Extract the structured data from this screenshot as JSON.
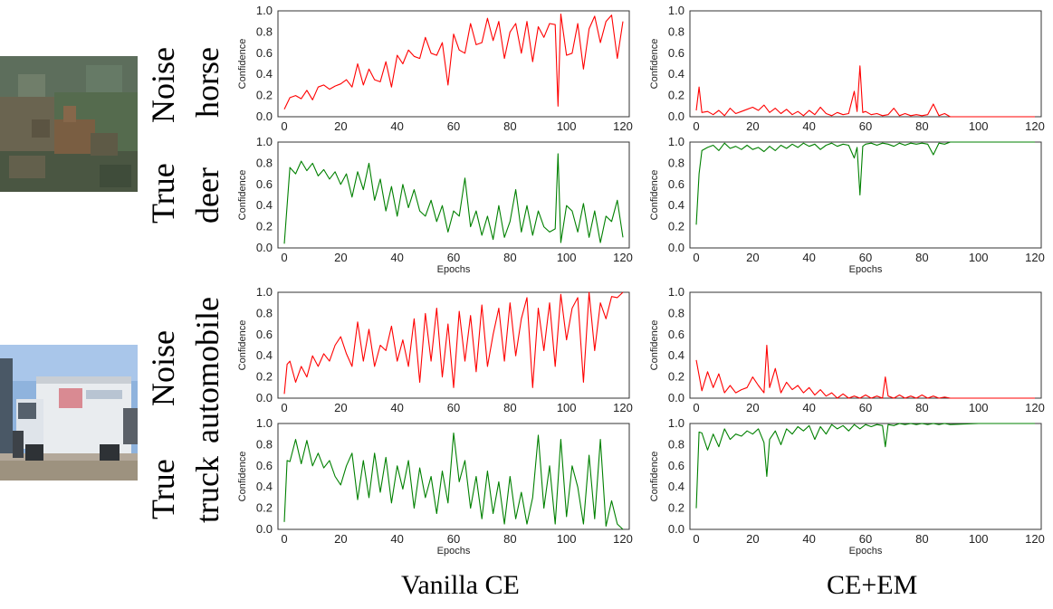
{
  "figure": {
    "row_labels": {
      "sample1": {
        "noise_word": "Noise",
        "noise_class": "horse",
        "true_word": "True",
        "true_class": "deer"
      },
      "sample2": {
        "noise_word": "Noise",
        "noise_class": "automobile",
        "true_word": "True",
        "true_class": "truck"
      }
    },
    "column_titles": {
      "left": "Vanilla CE",
      "right": "CE+EM"
    },
    "colors": {
      "noise": "#ff0000",
      "true": "#008000",
      "axis": "#333333"
    },
    "images": {
      "sample1": "deer-image",
      "sample2": "truck-image"
    }
  },
  "chart_data": [
    {
      "id": "c1",
      "type": "line",
      "method": "Vanilla CE",
      "series_name": "horse",
      "label_kind": "noise",
      "xlabel": "",
      "ylabel": "Confidence",
      "xlim": [
        0,
        120
      ],
      "ylim": [
        0,
        1
      ],
      "xticks": [
        0,
        20,
        40,
        60,
        80,
        100,
        120
      ],
      "yticks": [
        0.0,
        0.2,
        0.4,
        0.6,
        0.8,
        1.0
      ],
      "x": [
        0,
        2,
        4,
        6,
        8,
        10,
        12,
        14,
        16,
        18,
        20,
        22,
        24,
        26,
        28,
        30,
        32,
        34,
        36,
        38,
        40,
        42,
        44,
        46,
        48,
        50,
        52,
        54,
        56,
        58,
        60,
        62,
        64,
        66,
        68,
        70,
        72,
        74,
        76,
        78,
        80,
        82,
        84,
        86,
        88,
        90,
        92,
        94,
        96,
        97,
        98,
        100,
        102,
        104,
        106,
        108,
        110,
        112,
        114,
        116,
        118,
        120
      ],
      "values": [
        0.07,
        0.18,
        0.2,
        0.17,
        0.25,
        0.16,
        0.28,
        0.3,
        0.26,
        0.29,
        0.31,
        0.35,
        0.28,
        0.5,
        0.3,
        0.45,
        0.35,
        0.33,
        0.52,
        0.28,
        0.58,
        0.5,
        0.63,
        0.57,
        0.55,
        0.75,
        0.6,
        0.58,
        0.7,
        0.3,
        0.78,
        0.63,
        0.6,
        0.88,
        0.68,
        0.7,
        0.93,
        0.72,
        0.9,
        0.55,
        0.8,
        0.88,
        0.6,
        0.9,
        0.52,
        0.85,
        0.75,
        0.88,
        0.87,
        0.1,
        0.97,
        0.58,
        0.6,
        0.88,
        0.45,
        0.83,
        0.95,
        0.7,
        0.9,
        0.96,
        0.55,
        0.9
      ]
    },
    {
      "id": "c2",
      "type": "line",
      "method": "CE+EM",
      "series_name": "horse",
      "label_kind": "noise",
      "xlabel": "",
      "ylabel": "Confidence",
      "xlim": [
        0,
        120
      ],
      "ylim": [
        0,
        1
      ],
      "xticks": [
        0,
        20,
        40,
        60,
        80,
        100,
        120
      ],
      "yticks": [
        0.0,
        0.2,
        0.4,
        0.6,
        0.8,
        1.0
      ],
      "x": [
        0,
        1,
        2,
        4,
        6,
        8,
        10,
        12,
        14,
        16,
        18,
        20,
        22,
        24,
        26,
        28,
        30,
        32,
        34,
        36,
        38,
        40,
        42,
        44,
        46,
        48,
        50,
        52,
        54,
        56,
        57,
        58,
        59,
        60,
        62,
        64,
        66,
        68,
        70,
        72,
        74,
        76,
        78,
        80,
        82,
        84,
        86,
        88,
        90,
        100,
        110,
        120
      ],
      "values": [
        0.06,
        0.28,
        0.04,
        0.05,
        0.02,
        0.06,
        0.01,
        0.08,
        0.03,
        0.05,
        0.07,
        0.09,
        0.06,
        0.11,
        0.04,
        0.08,
        0.03,
        0.07,
        0.02,
        0.05,
        0.01,
        0.06,
        0.02,
        0.09,
        0.03,
        0.01,
        0.04,
        0.02,
        0.03,
        0.24,
        0.05,
        0.48,
        0.04,
        0.05,
        0.02,
        0.03,
        0.01,
        0.02,
        0.08,
        0.01,
        0.03,
        0.01,
        0.02,
        0.01,
        0.02,
        0.12,
        0.01,
        0.03,
        0.0,
        0.0,
        0.0,
        0.0
      ]
    },
    {
      "id": "c3",
      "type": "line",
      "method": "Vanilla CE",
      "series_name": "deer",
      "label_kind": "true",
      "xlabel": "Epochs",
      "ylabel": "Confidence",
      "xlim": [
        0,
        120
      ],
      "ylim": [
        0,
        1
      ],
      "xticks": [
        0,
        20,
        40,
        60,
        80,
        100,
        120
      ],
      "yticks": [
        0.0,
        0.2,
        0.4,
        0.6,
        0.8,
        1.0
      ],
      "x": [
        0,
        2,
        4,
        6,
        8,
        10,
        12,
        14,
        16,
        18,
        20,
        22,
        24,
        26,
        28,
        30,
        32,
        34,
        36,
        38,
        40,
        42,
        44,
        46,
        48,
        50,
        52,
        54,
        56,
        58,
        60,
        62,
        64,
        66,
        68,
        70,
        72,
        74,
        76,
        78,
        80,
        82,
        84,
        86,
        88,
        90,
        92,
        94,
        96,
        97,
        98,
        100,
        102,
        104,
        106,
        108,
        110,
        112,
        114,
        116,
        118,
        120
      ],
      "values": [
        0.04,
        0.76,
        0.7,
        0.82,
        0.73,
        0.8,
        0.68,
        0.74,
        0.65,
        0.72,
        0.6,
        0.7,
        0.48,
        0.72,
        0.55,
        0.8,
        0.45,
        0.65,
        0.35,
        0.58,
        0.3,
        0.6,
        0.38,
        0.55,
        0.35,
        0.3,
        0.45,
        0.25,
        0.4,
        0.15,
        0.35,
        0.3,
        0.66,
        0.2,
        0.35,
        0.12,
        0.3,
        0.08,
        0.4,
        0.1,
        0.25,
        0.55,
        0.15,
        0.4,
        0.12,
        0.35,
        0.2,
        0.15,
        0.18,
        0.89,
        0.05,
        0.4,
        0.35,
        0.15,
        0.42,
        0.1,
        0.35,
        0.05,
        0.3,
        0.25,
        0.45,
        0.1
      ]
    },
    {
      "id": "c4",
      "type": "line",
      "method": "CE+EM",
      "series_name": "deer",
      "label_kind": "true",
      "xlabel": "Epochs",
      "ylabel": "Confidence",
      "xlim": [
        0,
        120
      ],
      "ylim": [
        0,
        1
      ],
      "xticks": [
        0,
        20,
        40,
        60,
        80,
        100,
        120
      ],
      "yticks": [
        0.0,
        0.2,
        0.4,
        0.6,
        0.8,
        1.0
      ],
      "x": [
        0,
        1,
        2,
        4,
        6,
        8,
        10,
        12,
        14,
        16,
        18,
        20,
        22,
        24,
        26,
        28,
        30,
        32,
        34,
        36,
        38,
        40,
        42,
        44,
        46,
        48,
        50,
        52,
        54,
        56,
        57,
        58,
        59,
        60,
        62,
        64,
        66,
        68,
        70,
        72,
        74,
        76,
        78,
        80,
        82,
        84,
        86,
        88,
        90,
        100,
        110,
        120
      ],
      "values": [
        0.22,
        0.7,
        0.92,
        0.95,
        0.97,
        0.92,
        0.99,
        0.94,
        0.96,
        0.93,
        0.97,
        0.93,
        0.95,
        0.91,
        0.96,
        0.92,
        0.97,
        0.94,
        0.98,
        0.95,
        0.99,
        0.96,
        0.98,
        0.93,
        0.97,
        0.99,
        0.96,
        0.98,
        0.97,
        0.85,
        0.95,
        0.5,
        0.96,
        0.98,
        0.99,
        0.97,
        0.99,
        0.98,
        0.96,
        0.99,
        0.97,
        0.99,
        0.98,
        0.99,
        0.98,
        0.88,
        0.99,
        0.98,
        1.0,
        1.0,
        1.0,
        1.0
      ]
    },
    {
      "id": "c5",
      "type": "line",
      "method": "Vanilla CE",
      "series_name": "automobile",
      "label_kind": "noise",
      "xlabel": "",
      "ylabel": "Confidence",
      "xlim": [
        0,
        120
      ],
      "ylim": [
        0,
        1
      ],
      "xticks": [
        0,
        20,
        40,
        60,
        80,
        100,
        120
      ],
      "yticks": [
        0.0,
        0.2,
        0.4,
        0.6,
        0.8,
        1.0
      ],
      "x": [
        0,
        1,
        2,
        4,
        6,
        8,
        10,
        12,
        14,
        16,
        18,
        20,
        22,
        24,
        26,
        28,
        30,
        32,
        34,
        36,
        38,
        40,
        42,
        44,
        46,
        48,
        50,
        52,
        54,
        56,
        58,
        60,
        62,
        64,
        66,
        68,
        70,
        72,
        74,
        76,
        78,
        80,
        82,
        84,
        86,
        88,
        90,
        92,
        94,
        96,
        98,
        100,
        102,
        104,
        106,
        108,
        110,
        112,
        114,
        116,
        118,
        120
      ],
      "values": [
        0.04,
        0.32,
        0.35,
        0.15,
        0.3,
        0.2,
        0.4,
        0.3,
        0.42,
        0.35,
        0.5,
        0.58,
        0.42,
        0.3,
        0.72,
        0.35,
        0.65,
        0.3,
        0.5,
        0.45,
        0.68,
        0.35,
        0.55,
        0.3,
        0.75,
        0.15,
        0.8,
        0.35,
        0.85,
        0.2,
        0.7,
        0.1,
        0.82,
        0.35,
        0.78,
        0.25,
        0.88,
        0.3,
        0.6,
        0.85,
        0.35,
        0.9,
        0.4,
        0.75,
        0.95,
        0.1,
        0.85,
        0.45,
        0.9,
        0.3,
        0.98,
        0.55,
        0.85,
        0.95,
        0.15,
        1.0,
        0.45,
        0.9,
        0.75,
        0.96,
        0.95,
        1.0
      ]
    },
    {
      "id": "c6",
      "type": "line",
      "method": "CE+EM",
      "series_name": "automobile",
      "label_kind": "noise",
      "xlabel": "",
      "ylabel": "Confidence",
      "xlim": [
        0,
        120
      ],
      "ylim": [
        0,
        1
      ],
      "xticks": [
        0,
        20,
        40,
        60,
        80,
        100,
        120
      ],
      "yticks": [
        0.0,
        0.2,
        0.4,
        0.6,
        0.8,
        1.0
      ],
      "x": [
        0,
        2,
        4,
        6,
        8,
        10,
        12,
        14,
        16,
        18,
        20,
        22,
        24,
        25,
        26,
        28,
        30,
        32,
        34,
        36,
        38,
        40,
        42,
        44,
        46,
        48,
        50,
        52,
        54,
        56,
        58,
        60,
        62,
        64,
        66,
        67,
        68,
        70,
        72,
        74,
        76,
        78,
        80,
        82,
        84,
        86,
        88,
        90,
        100,
        110,
        120
      ],
      "values": [
        0.36,
        0.07,
        0.25,
        0.1,
        0.23,
        0.05,
        0.12,
        0.05,
        0.08,
        0.1,
        0.2,
        0.12,
        0.05,
        0.5,
        0.1,
        0.28,
        0.05,
        0.15,
        0.08,
        0.12,
        0.05,
        0.1,
        0.03,
        0.08,
        0.02,
        0.05,
        0.0,
        0.04,
        0.0,
        0.02,
        0.0,
        0.03,
        0.0,
        0.02,
        0.0,
        0.2,
        0.02,
        0.0,
        0.03,
        0.0,
        0.02,
        0.0,
        0.03,
        0.0,
        0.02,
        0.0,
        0.01,
        0.0,
        0.0,
        0.0,
        0.0
      ]
    },
    {
      "id": "c7",
      "type": "line",
      "method": "Vanilla CE",
      "series_name": "truck",
      "label_kind": "true",
      "xlabel": "Epochs",
      "ylabel": "Confidence",
      "xlim": [
        0,
        120
      ],
      "ylim": [
        0,
        1
      ],
      "xticks": [
        0,
        20,
        40,
        60,
        80,
        100,
        120
      ],
      "yticks": [
        0.0,
        0.2,
        0.4,
        0.6,
        0.8,
        1.0
      ],
      "x": [
        0,
        1,
        2,
        4,
        6,
        8,
        10,
        12,
        14,
        16,
        18,
        20,
        22,
        24,
        26,
        28,
        30,
        32,
        34,
        36,
        38,
        40,
        42,
        44,
        46,
        48,
        50,
        52,
        54,
        56,
        58,
        60,
        62,
        64,
        66,
        68,
        70,
        72,
        74,
        76,
        78,
        80,
        82,
        84,
        86,
        88,
        90,
        92,
        94,
        96,
        98,
        100,
        102,
        104,
        106,
        108,
        110,
        112,
        114,
        116,
        118,
        120
      ],
      "values": [
        0.07,
        0.65,
        0.64,
        0.85,
        0.62,
        0.84,
        0.6,
        0.72,
        0.58,
        0.65,
        0.5,
        0.42,
        0.6,
        0.72,
        0.28,
        0.65,
        0.3,
        0.72,
        0.35,
        0.68,
        0.25,
        0.6,
        0.38,
        0.65,
        0.2,
        0.58,
        0.3,
        0.5,
        0.15,
        0.55,
        0.25,
        0.91,
        0.45,
        0.65,
        0.2,
        0.5,
        0.1,
        0.55,
        0.15,
        0.45,
        0.05,
        0.5,
        0.1,
        0.35,
        0.05,
        0.3,
        0.89,
        0.2,
        0.6,
        0.05,
        0.85,
        0.12,
        0.6,
        0.4,
        0.05,
        0.7,
        0.1,
        0.85,
        0.03,
        0.27,
        0.05,
        0.0
      ]
    },
    {
      "id": "c8",
      "type": "line",
      "method": "CE+EM",
      "series_name": "truck",
      "label_kind": "true",
      "xlabel": "Epochs",
      "ylabel": "Confidence",
      "xlim": [
        0,
        120
      ],
      "ylim": [
        0,
        1
      ],
      "xticks": [
        0,
        20,
        40,
        60,
        80,
        100,
        120
      ],
      "yticks": [
        0.0,
        0.2,
        0.4,
        0.6,
        0.8,
        1.0
      ],
      "x": [
        0,
        1,
        2,
        4,
        6,
        8,
        10,
        12,
        14,
        16,
        18,
        20,
        22,
        24,
        25,
        26,
        28,
        30,
        32,
        34,
        36,
        38,
        40,
        42,
        44,
        46,
        48,
        50,
        52,
        54,
        56,
        58,
        60,
        62,
        64,
        66,
        67,
        68,
        70,
        72,
        74,
        76,
        78,
        80,
        82,
        84,
        86,
        88,
        90,
        100,
        110,
        120
      ],
      "values": [
        0.2,
        0.92,
        0.91,
        0.75,
        0.9,
        0.78,
        0.95,
        0.85,
        0.9,
        0.88,
        0.93,
        0.9,
        0.95,
        0.82,
        0.5,
        0.85,
        0.93,
        0.8,
        0.95,
        0.9,
        0.97,
        0.93,
        0.98,
        0.85,
        0.97,
        0.9,
        0.99,
        0.95,
        0.98,
        0.93,
        0.99,
        0.95,
        0.99,
        0.97,
        0.99,
        0.98,
        0.78,
        0.99,
        0.98,
        1.0,
        0.99,
        1.0,
        0.99,
        1.0,
        0.99,
        1.0,
        0.99,
        1.0,
        0.99,
        1.0,
        1.0,
        1.0
      ]
    }
  ]
}
